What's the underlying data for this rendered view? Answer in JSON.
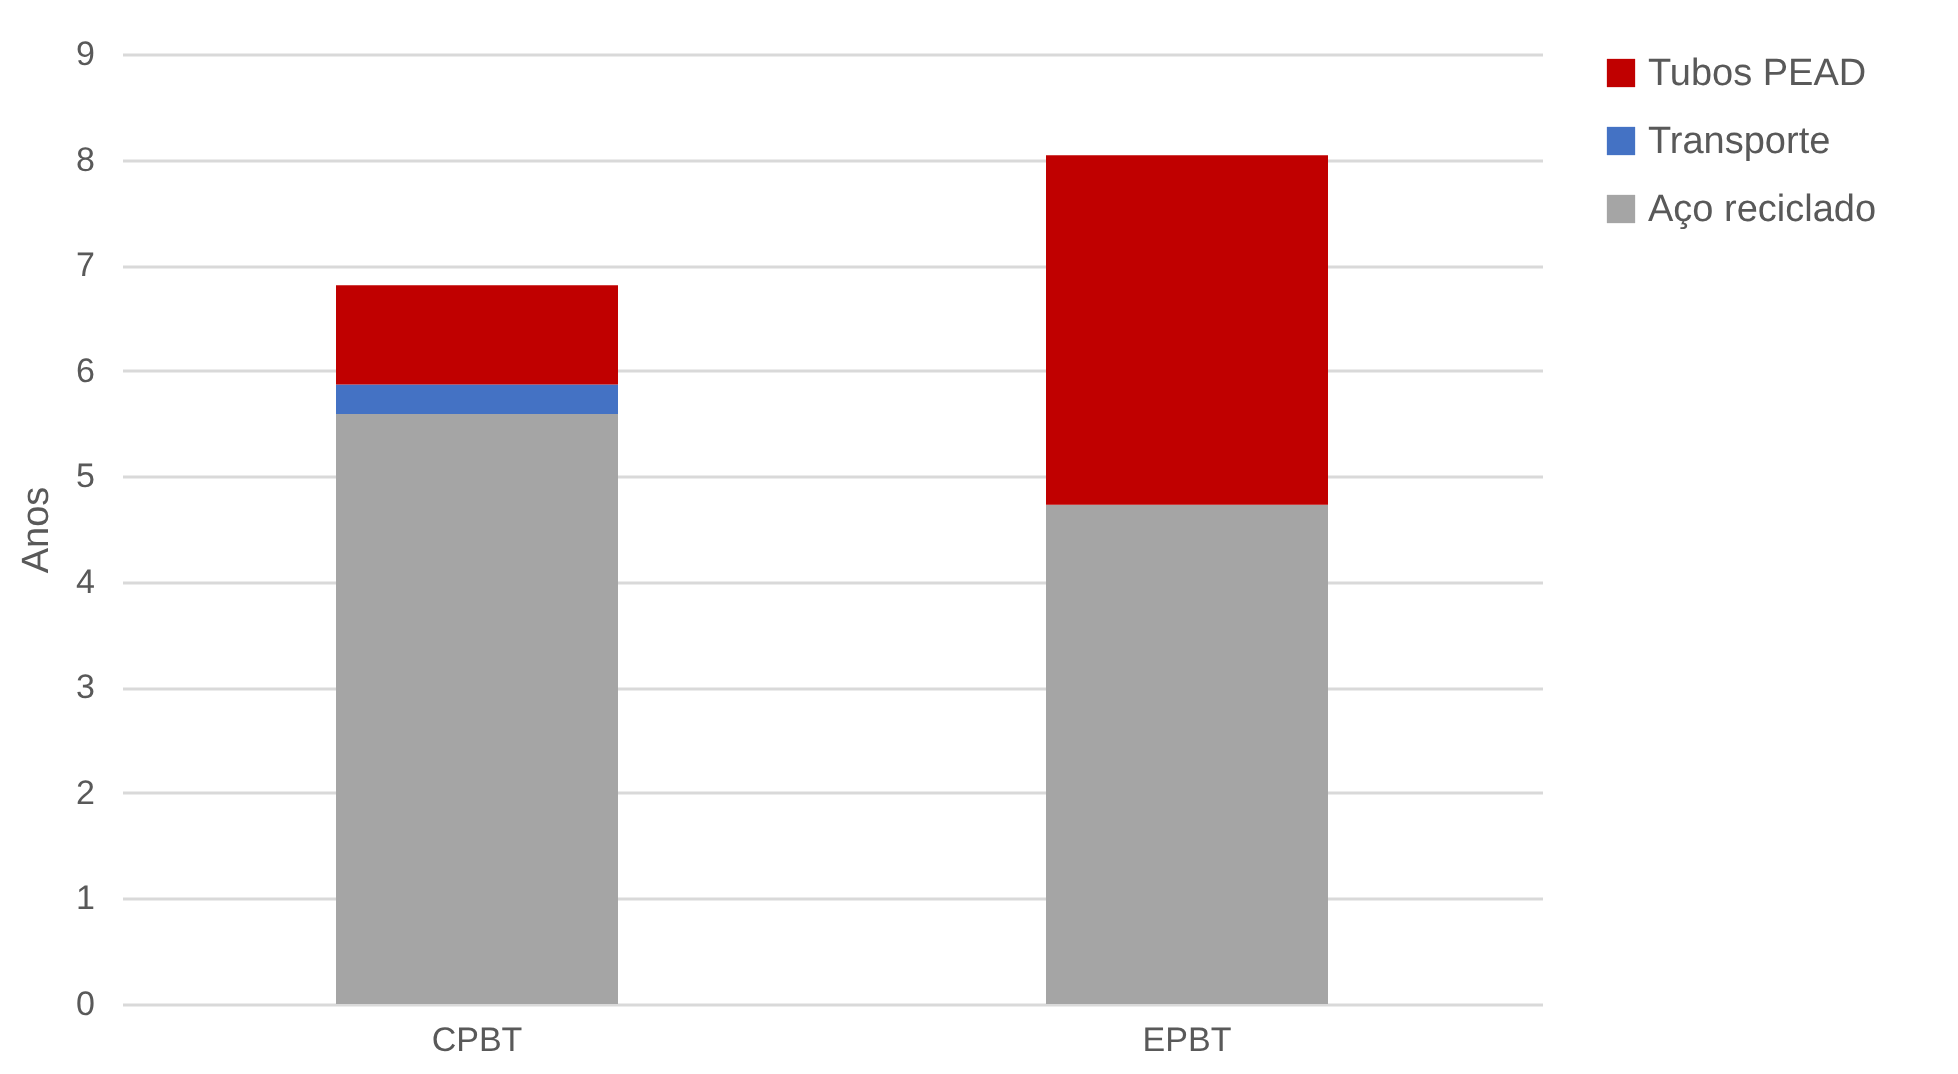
{
  "chart_data": {
    "type": "bar",
    "stacked": true,
    "ylabel": "Anos",
    "categories": [
      "CPBT",
      "EPBT"
    ],
    "series": [
      {
        "name": "Aço reciclado",
        "color": "#a5a5a5",
        "values": [
          5.59,
          4.73
        ]
      },
      {
        "name": "Transporte",
        "color": "#4472c4",
        "values": [
          0.28,
          0
        ]
      },
      {
        "name": "Tubos PEAD",
        "color": "#c00000",
        "values": [
          0.94,
          3.31
        ]
      }
    ],
    "ylim": [
      0,
      9
    ],
    "yticks": [
      0,
      1,
      2,
      3,
      4,
      5,
      6,
      7,
      8,
      9
    ],
    "grid": "y",
    "legend": "right"
  }
}
